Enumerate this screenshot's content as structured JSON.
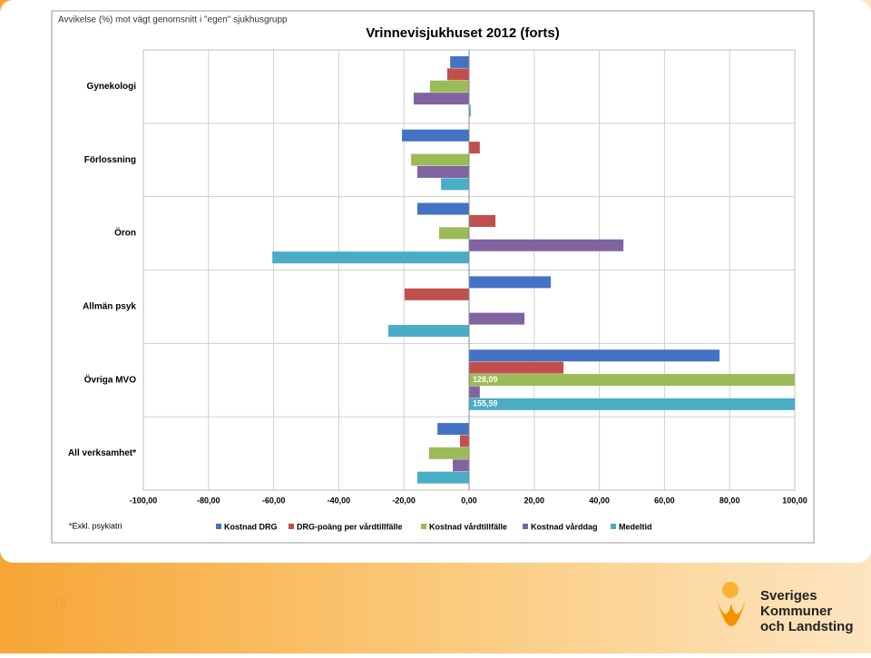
{
  "chart_data": {
    "type": "hbar",
    "title": "Vrinnevisjukhuset 2012 (forts)",
    "subtitle": "Avvikelse (%) mot vägt genomsnitt i \"egen\" sjukhusgrupp",
    "footnote": "*Exkl. psykiatri",
    "categories": [
      "Gynekologi",
      "Förlossning",
      "Öron",
      "Allmän psyk",
      "Övriga MVO",
      "All verksamhet*"
    ],
    "series": [
      {
        "name": "Kostnad DRG",
        "color": "#4472c4",
        "values": [
          -5.8,
          -20.6,
          -15.9,
          25.1,
          76.9,
          -9.7
        ]
      },
      {
        "name": "DRG-poäng per vårdtillfälle",
        "color": "#c0504d",
        "values": [
          -6.7,
          3.3,
          8.1,
          -19.8,
          29,
          -2.8
        ]
      },
      {
        "name": "Kostnad vårdtillfälle",
        "color": "#9bbb59",
        "values": [
          -12,
          -17.8,
          -9.2,
          null,
          128.09,
          -12.3
        ],
        "value_labels": [
          null,
          null,
          null,
          null,
          "128,09",
          null
        ]
      },
      {
        "name": "Kostnad vårddag",
        "color": "#8064a2",
        "values": [
          -17,
          -15.9,
          47.4,
          17,
          3.3,
          -5
        ]
      },
      {
        "name": "Medeltid",
        "color": "#4bacc6",
        "values": [
          0.5,
          -8.6,
          -60.4,
          -24.8,
          155.59,
          -15.9
        ],
        "value_labels": [
          null,
          null,
          null,
          null,
          "155,59",
          null
        ]
      }
    ],
    "xlim": [
      -100,
      100
    ],
    "xticks": [
      {
        "value": -100,
        "label": "-100,00"
      },
      {
        "value": -80,
        "label": "-80,00"
      },
      {
        "value": -60,
        "label": "-60,00"
      },
      {
        "value": -40,
        "label": "-40,00"
      },
      {
        "value": -20,
        "label": "-20,00"
      },
      {
        "value": 0,
        "label": "0,00"
      },
      {
        "value": 20,
        "label": "20,00"
      },
      {
        "value": 40,
        "label": "40,00"
      },
      {
        "value": 60,
        "label": "60,00"
      },
      {
        "value": 80,
        "label": "80,00"
      },
      {
        "value": 100,
        "label": "100,00"
      }
    ],
    "grid": true,
    "legend": "bottom"
  },
  "slide": {
    "number": "19",
    "logo": [
      "Sveriges",
      "Kommuner",
      "och Landsting"
    ]
  }
}
